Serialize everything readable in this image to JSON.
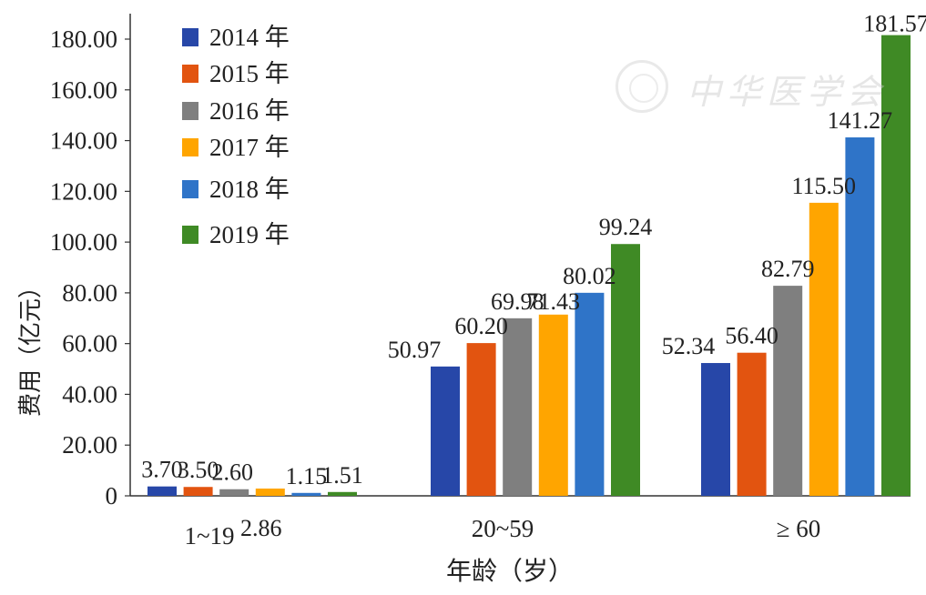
{
  "chart_data": {
    "type": "bar",
    "title": "",
    "xlabel": "年龄（岁）",
    "ylabel": "费用（亿元）",
    "categories": [
      "1~19",
      "20~59",
      "≥ 60"
    ],
    "ylim": [
      0,
      190
    ],
    "yticks": [
      "0",
      "20.00",
      "40.00",
      "60.00",
      "80.00",
      "100.00",
      "120.00",
      "140.00",
      "160.00",
      "180.00"
    ],
    "legend_position": "top-left",
    "series": [
      {
        "name": "2014 年",
        "color": "#2747a8",
        "values": [
          3.7,
          50.97,
          52.34
        ],
        "labels": [
          "3.70",
          "50.97",
          "52.34"
        ]
      },
      {
        "name": "2015 年",
        "color": "#e25410",
        "values": [
          3.5,
          60.2,
          56.4
        ],
        "labels": [
          "3.50",
          "60.20",
          "56.40"
        ]
      },
      {
        "name": "2016 年",
        "color": "#7f7f7f",
        "values": [
          2.6,
          69.98,
          82.79
        ],
        "labels": [
          "2.60",
          "69.98",
          "82.79"
        ]
      },
      {
        "name": "2017 年",
        "color": "#ffa500",
        "values": [
          2.86,
          71.43,
          115.5
        ],
        "labels": [
          "2.86",
          "71.43",
          "115.50"
        ]
      },
      {
        "name": "2018 年",
        "color": "#2f74c8",
        "values": [
          1.15,
          80.02,
          141.27
        ],
        "labels": [
          "1.15",
          "80.02",
          "141.27"
        ]
      },
      {
        "name": "2019 年",
        "color": "#3f8a25",
        "values": [
          1.51,
          99.24,
          181.57
        ],
        "labels": [
          "1.51",
          "99.24",
          "181.57"
        ]
      }
    ]
  },
  "watermark": {
    "text": "中华医学会"
  }
}
